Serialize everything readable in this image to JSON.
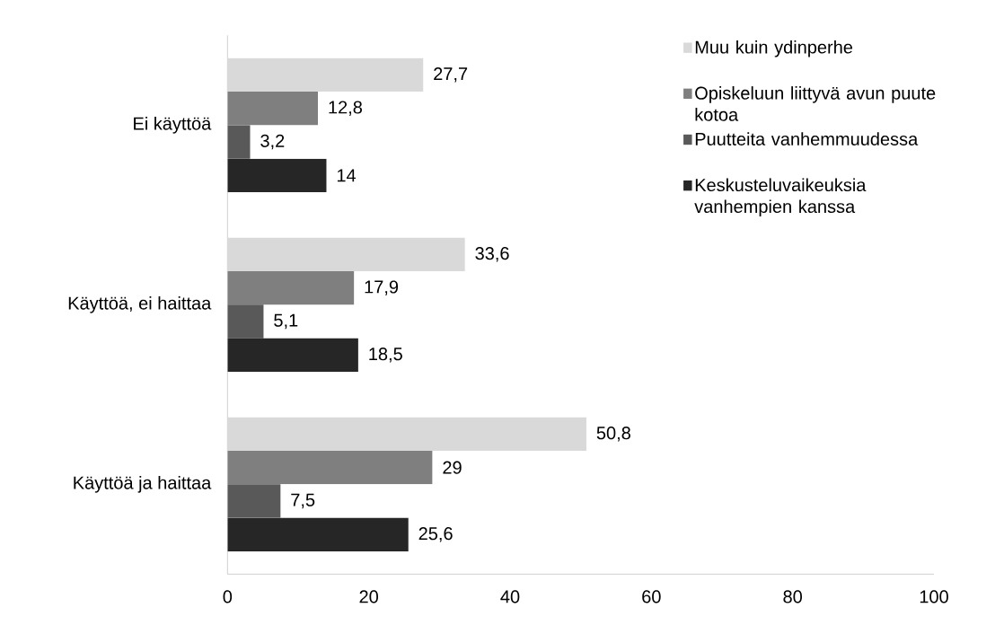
{
  "chart_data": {
    "type": "bar",
    "orientation": "horizontal",
    "categories": [
      "Ei käyttöä",
      "Käyttöä, ei haittaa",
      "Käyttöä ja haittaa"
    ],
    "series": [
      {
        "name": "Muu kuin ydinperhe",
        "color": "#d9d9d9",
        "values": [
          27.7,
          33.6,
          50.8
        ],
        "value_labels": [
          "27,7",
          "33,6",
          "50,8"
        ]
      },
      {
        "name": "Opiskeluun liittyvä avun puute kotoa",
        "color": "#7f7f7f",
        "values": [
          12.8,
          17.9,
          29
        ],
        "value_labels": [
          "12,8",
          "17,9",
          "29"
        ]
      },
      {
        "name": "Puutteita vanhemmuudessa",
        "color": "#595959",
        "values": [
          3.2,
          5.1,
          7.5
        ],
        "value_labels": [
          "3,2",
          "5,1",
          "7,5"
        ]
      },
      {
        "name": "Keskusteluvaikeuksia vanhempien kanssa",
        "color": "#262626",
        "values": [
          14,
          18.5,
          25.6
        ],
        "value_labels": [
          "14",
          "18,5",
          "25,6"
        ]
      }
    ],
    "xlim": [
      0,
      100
    ],
    "xticks": [
      0,
      20,
      40,
      60,
      80,
      100
    ],
    "legend": "top right",
    "grid": false
  }
}
